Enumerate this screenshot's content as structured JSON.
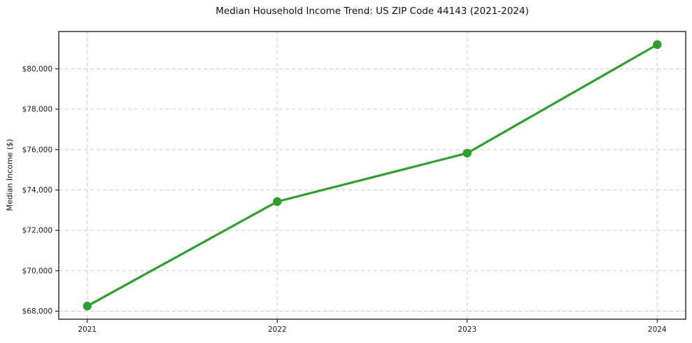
{
  "chart_data": {
    "type": "line",
    "title": "Median Household Income Trend: US ZIP Code 44143 (2021-2024)",
    "xlabel": "",
    "ylabel": "Median Income ($)",
    "x": [
      2021,
      2022,
      2023,
      2024
    ],
    "x_tick_labels": [
      "2021",
      "2022",
      "2023",
      "2024"
    ],
    "values": [
      68250,
      73425,
      75825,
      81200
    ],
    "series_name": "Median Household Income",
    "y_ticks": [
      68000,
      70000,
      72000,
      74000,
      76000,
      78000,
      80000
    ],
    "y_tick_labels": [
      "$68,000",
      "$70,000",
      "$72,000",
      "$74,000",
      "$76,000",
      "$78,000",
      "$80,000"
    ],
    "xlim": [
      2020.85,
      2024.15
    ],
    "ylim": [
      67600,
      81850
    ],
    "grid": true,
    "grid_style": "dashed",
    "legend": "none",
    "line_color": "#2ca02c",
    "marker": "circle",
    "grid_color": "#cccccc",
    "spine_color": "#000000",
    "background_color": "#ffffff"
  }
}
